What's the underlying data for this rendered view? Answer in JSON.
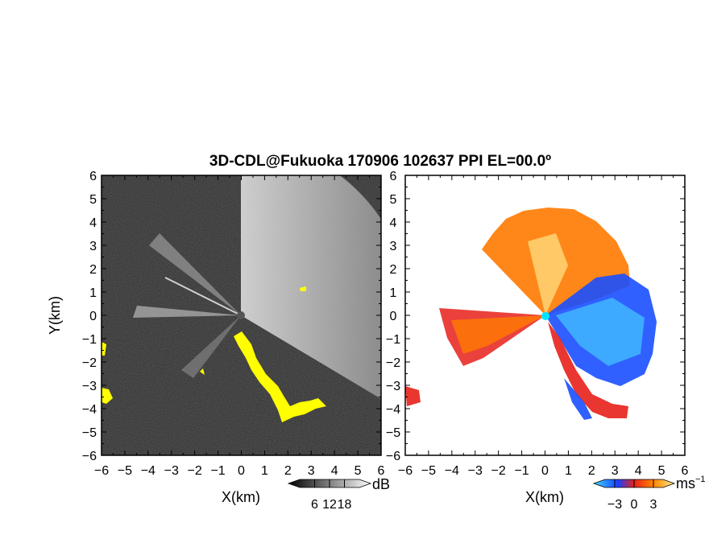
{
  "title": "3D-CDL@Fukuoka 170906 102637 PPI EL=00.0º",
  "colors": {
    "background": "#ffffff",
    "panel_left_bg": "#2b2b2b",
    "beam_light": "#d8d8d8",
    "ground_clutter": "#ffff00",
    "radar_site_left": "#555555",
    "radar_site_right": "#00e5ff",
    "velocity_negative": "#1a4fff",
    "velocity_negative_light": "#3fb7ff",
    "velocity_positive": "#ff7a00",
    "velocity_positive_light": "#ffd070",
    "velocity_strong_positive": "#e8201a"
  },
  "chart_data": [
    {
      "type": "heatmap",
      "name_hidden": "",
      "xlabel": "X(km)",
      "ylabel": "Y(km)",
      "xlim": [
        -6,
        6
      ],
      "ylim": [
        -6,
        6
      ],
      "xticks": [
        "−6",
        "−5",
        "−4",
        "−3",
        "−2",
        "−1",
        "0",
        "1",
        "2",
        "3",
        "4",
        "5",
        "6"
      ],
      "yticks": [
        "6",
        "5",
        "4",
        "3",
        "2",
        "1",
        "0",
        "−1",
        "−2",
        "−3",
        "−4",
        "−5",
        "−6"
      ],
      "colorbar": {
        "unit": "dB",
        "ticks": [
          "6",
          "12",
          "18"
        ],
        "range": [
          0,
          24
        ]
      }
    },
    {
      "type": "heatmap",
      "xlabel": "X(km)",
      "ylabel": "",
      "xlim": [
        -6,
        6
      ],
      "ylim": [
        -6,
        6
      ],
      "xticks": [
        "−6",
        "−5",
        "−4",
        "−3",
        "−2",
        "−1",
        "0",
        "1",
        "2",
        "3",
        "4",
        "5",
        "6"
      ],
      "yticks": [
        "6",
        "5",
        "4",
        "3",
        "2",
        "1",
        "0",
        "−1",
        "−2",
        "−3",
        "−4",
        "−5",
        "−6"
      ],
      "colorbar": {
        "unit": "ms",
        "unit_sup": "−1",
        "ticks": [
          "−3",
          "0",
          "3"
        ],
        "range": [
          -4.5,
          4.5
        ]
      }
    }
  ]
}
